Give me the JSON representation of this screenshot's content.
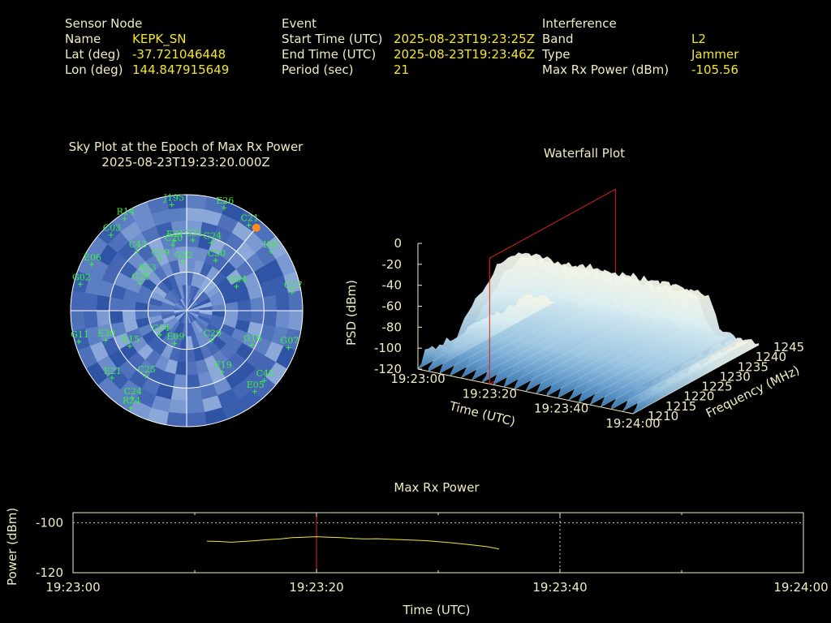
{
  "header": {
    "sensor": {
      "title": "Sensor Node",
      "rows": [
        {
          "label": "Name",
          "value": "KEPK_SN"
        },
        {
          "label": "Lat (deg)",
          "value": "-37.721046448"
        },
        {
          "label": "Lon (deg)",
          "value": "144.847915649"
        }
      ]
    },
    "event": {
      "title": "Event",
      "rows": [
        {
          "label": "Start Time (UTC)",
          "value": "2025-08-23T19:23:25Z"
        },
        {
          "label": "End Time (UTC)",
          "value": "2025-08-23T19:23:46Z"
        },
        {
          "label": "Period (sec)",
          "value": "21"
        }
      ]
    },
    "interference": {
      "title": "Interference",
      "rows": [
        {
          "label": "Band",
          "value": "L2"
        },
        {
          "label": "Type",
          "value": "Jammer"
        },
        {
          "label": "Max Rx Power (dBm)",
          "value": "-105.56"
        }
      ]
    }
  },
  "colors": {
    "label_text": "#f0ebc0",
    "value_text": "#f2e62c",
    "satellite": "#3cf03c",
    "sky_blue_dark": "#2a4c9c",
    "sky_blue_light": "#7d9fd9",
    "power_line": "#f2e62c",
    "epoch_marker": "#e0201a",
    "jammer_marker": "#ff8c1a"
  },
  "chart_data": [
    {
      "type": "scatter",
      "subtype": "polar-skyplot",
      "title": "Sky Plot at the Epoch of Max Rx Power",
      "subtitle": "2025-08-23T19:23:20.000Z",
      "elevation_rings_deg": [
        0,
        30,
        60,
        90
      ],
      "satellites": [
        {
          "id": "J195",
          "az": 352,
          "el": 7
        },
        {
          "id": "E26",
          "az": 20,
          "el": 5
        },
        {
          "id": "R14",
          "az": 326,
          "el": 4
        },
        {
          "id": "C21",
          "az": 36,
          "el": 8
        },
        {
          "id": "C03",
          "az": 315,
          "el": 7
        },
        {
          "id": "E31",
          "az": 350,
          "el": 35
        },
        {
          "id": "C20",
          "az": 348,
          "el": 38
        },
        {
          "id": "G31",
          "az": 5,
          "el": 35
        },
        {
          "id": "G24",
          "az": 20,
          "el": 34
        },
        {
          "id": "I08",
          "az": 55,
          "el": 10
        },
        {
          "id": "C50",
          "az": 30,
          "el": 45
        },
        {
          "id": "E06",
          "az": 296,
          "el": 8
        },
        {
          "id": "C43",
          "az": 320,
          "el": 30
        },
        {
          "id": "R13",
          "az": 312,
          "el": 48
        },
        {
          "id": "G19",
          "az": 332,
          "el": 45
        },
        {
          "id": "G02",
          "az": 284,
          "el": 5
        },
        {
          "id": "G21",
          "az": 300,
          "el": 48
        },
        {
          "id": "G32",
          "az": 355,
          "el": 52
        },
        {
          "id": "G04",
          "az": 64,
          "el": 47
        },
        {
          "id": "G27",
          "az": 80,
          "el": 7
        },
        {
          "id": "E30",
          "az": 250,
          "el": 23
        },
        {
          "id": "C14",
          "az": 228,
          "el": 62
        },
        {
          "id": "E09",
          "az": 200,
          "el": 63
        },
        {
          "id": "E15",
          "az": 238,
          "el": 38
        },
        {
          "id": "G11",
          "az": 254,
          "el": 3
        },
        {
          "id": "C29",
          "az": 140,
          "el": 60
        },
        {
          "id": "G16",
          "az": 118,
          "el": 33
        },
        {
          "id": "G07",
          "az": 110,
          "el": 6
        },
        {
          "id": "E21",
          "az": 228,
          "el": 12
        },
        {
          "id": "C25",
          "az": 212,
          "el": 30
        },
        {
          "id": "C45",
          "az": 132,
          "el": 9
        },
        {
          "id": "E19",
          "az": 150,
          "el": 35
        },
        {
          "id": "C24",
          "az": 212,
          "el": 10
        },
        {
          "id": "R24",
          "az": 210,
          "el": 3
        },
        {
          "id": "E05",
          "az": 140,
          "el": 8
        }
      ],
      "jammer_direction": {
        "az": 40,
        "el": 6
      }
    },
    {
      "type": "area",
      "subtype": "3d-waterfall",
      "title": "Waterfall Plot",
      "xlabel": "Time (UTC)",
      "ylabel": "Frequency (MHz)",
      "zlabel": "PSD (dBm)",
      "x_ticks": [
        "19:23:00",
        "19:23:20",
        "19:23:40",
        "19:24:00"
      ],
      "y_ticks": [
        1210,
        1215,
        1220,
        1225,
        1230,
        1235,
        1240,
        1245
      ],
      "z_ticks": [
        0,
        -20,
        -40,
        -60,
        -80,
        -100,
        -120
      ],
      "zlim": [
        -120,
        0
      ],
      "ylim": [
        1210,
        1245
      ],
      "x_range_sec": [
        0,
        60
      ],
      "epoch_marker_sec": 20,
      "band_mhz": [
        1212,
        1238
      ],
      "psd_profile": {
        "freq_mhz": [
          1210,
          1212,
          1215,
          1218,
          1222,
          1226,
          1230,
          1234,
          1237,
          1240,
          1242,
          1245
        ],
        "psd_dbm": [
          -120,
          -108,
          -92,
          -78,
          -62,
          -48,
          -46,
          -50,
          -64,
          -98,
          -108,
          -118
        ]
      }
    },
    {
      "type": "line",
      "title": "Max Rx Power",
      "xlabel": "Time (UTC)",
      "ylabel": "Power (dBm)",
      "x_ticks": [
        "19:23:00",
        "19:23:20",
        "19:23:40",
        "19:24:00"
      ],
      "y_ticks": [
        -100,
        -120
      ],
      "ylim": [
        -120,
        -96
      ],
      "x_range_sec": [
        0,
        60
      ],
      "epoch_marker_sec": 20,
      "series": [
        {
          "x": [
            11,
            12,
            13,
            14,
            15,
            16,
            17,
            18,
            19,
            20,
            21,
            22,
            23,
            24,
            25,
            26,
            27,
            28,
            29,
            30,
            31,
            32,
            33,
            34,
            35
          ],
          "y": [
            -107.4,
            -107.5,
            -107.8,
            -107.5,
            -107.2,
            -106.8,
            -106.5,
            -106.0,
            -105.8,
            -105.6,
            -105.8,
            -106.0,
            -106.3,
            -106.5,
            -106.4,
            -106.6,
            -106.8,
            -107.0,
            -107.2,
            -107.6,
            -108.0,
            -108.5,
            -109.0,
            -109.6,
            -110.5
          ]
        }
      ]
    }
  ]
}
